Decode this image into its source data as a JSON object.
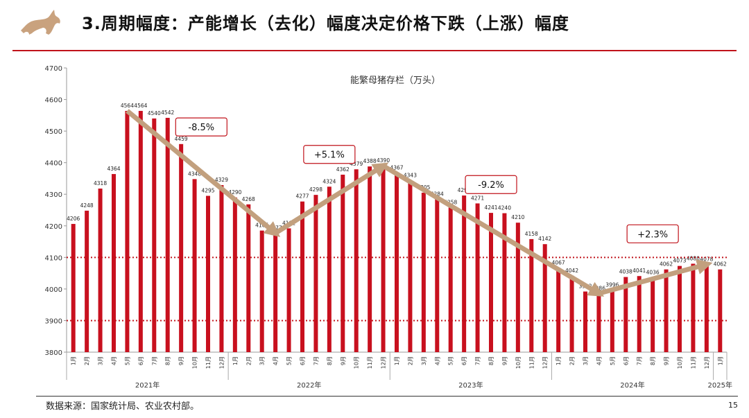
{
  "header": {
    "title": "3.周期幅度：产能增长（去化）幅度决定价格下跌（上涨）幅度",
    "logo_icon": "bull-logo-icon"
  },
  "footer": {
    "source": "数据来源：国家统计局、农业农村部。",
    "page_number": "15"
  },
  "colors": {
    "bar": "#c8101e",
    "arrow": "#c2a07e",
    "accent": "#c0121a"
  },
  "chart_data": {
    "type": "bar",
    "title": "能繁母猪存栏（万头）",
    "ylim": [
      3800,
      4700
    ],
    "yticks": [
      3800,
      3900,
      4000,
      4100,
      4200,
      4300,
      4400,
      4500,
      4600,
      4700
    ],
    "reference_lines": [
      4100,
      3900
    ],
    "categories": [
      "1月",
      "2月",
      "3月",
      "4月",
      "5月",
      "6月",
      "7月",
      "8月",
      "9月",
      "10月",
      "11月",
      "12月",
      "1月",
      "2月",
      "3月",
      "4月",
      "5月",
      "6月",
      "7月",
      "8月",
      "9月",
      "10月",
      "11月",
      "12月",
      "1月",
      "2月",
      "3月",
      "4月",
      "5月",
      "6月",
      "7月",
      "8月",
      "9月",
      "10月",
      "11月",
      "12月",
      "1月",
      "2月",
      "3月",
      "4月",
      "5月",
      "6月",
      "7月",
      "8月",
      "9月",
      "10月",
      "11月",
      "12月",
      "1月"
    ],
    "years": [
      {
        "label": "2021年",
        "start": 0,
        "count": 12
      },
      {
        "label": "2022年",
        "start": 12,
        "count": 12
      },
      {
        "label": "2023年",
        "start": 24,
        "count": 12
      },
      {
        "label": "2024年",
        "start": 36,
        "count": 12
      },
      {
        "label": "2025年",
        "start": 48,
        "count": 1
      }
    ],
    "values": [
      4206,
      4248,
      4318,
      4364,
      4564,
      4564,
      4540,
      4542,
      4459,
      4348,
      4295,
      4329,
      4290,
      4268,
      4185,
      4177,
      4192,
      4277,
      4298,
      4324,
      4362,
      4379,
      4388,
      4390,
      4367,
      4343,
      4305,
      4284,
      4258,
      4296,
      4271,
      4241,
      4240,
      4210,
      4158,
      4142,
      4067,
      4042,
      3992,
      3986,
      3996,
      4038,
      4041,
      4036,
      4062,
      4073,
      4080,
      4078,
      4062
    ],
    "annotations": [
      {
        "text": "-8.5%",
        "from": 4,
        "to": 15
      },
      {
        "text": "+5.1%",
        "from": 15,
        "to": 23
      },
      {
        "text": "-9.2%",
        "from": 23,
        "to": 39
      },
      {
        "text": "+2.3%",
        "from": 39,
        "to": 47
      }
    ]
  }
}
